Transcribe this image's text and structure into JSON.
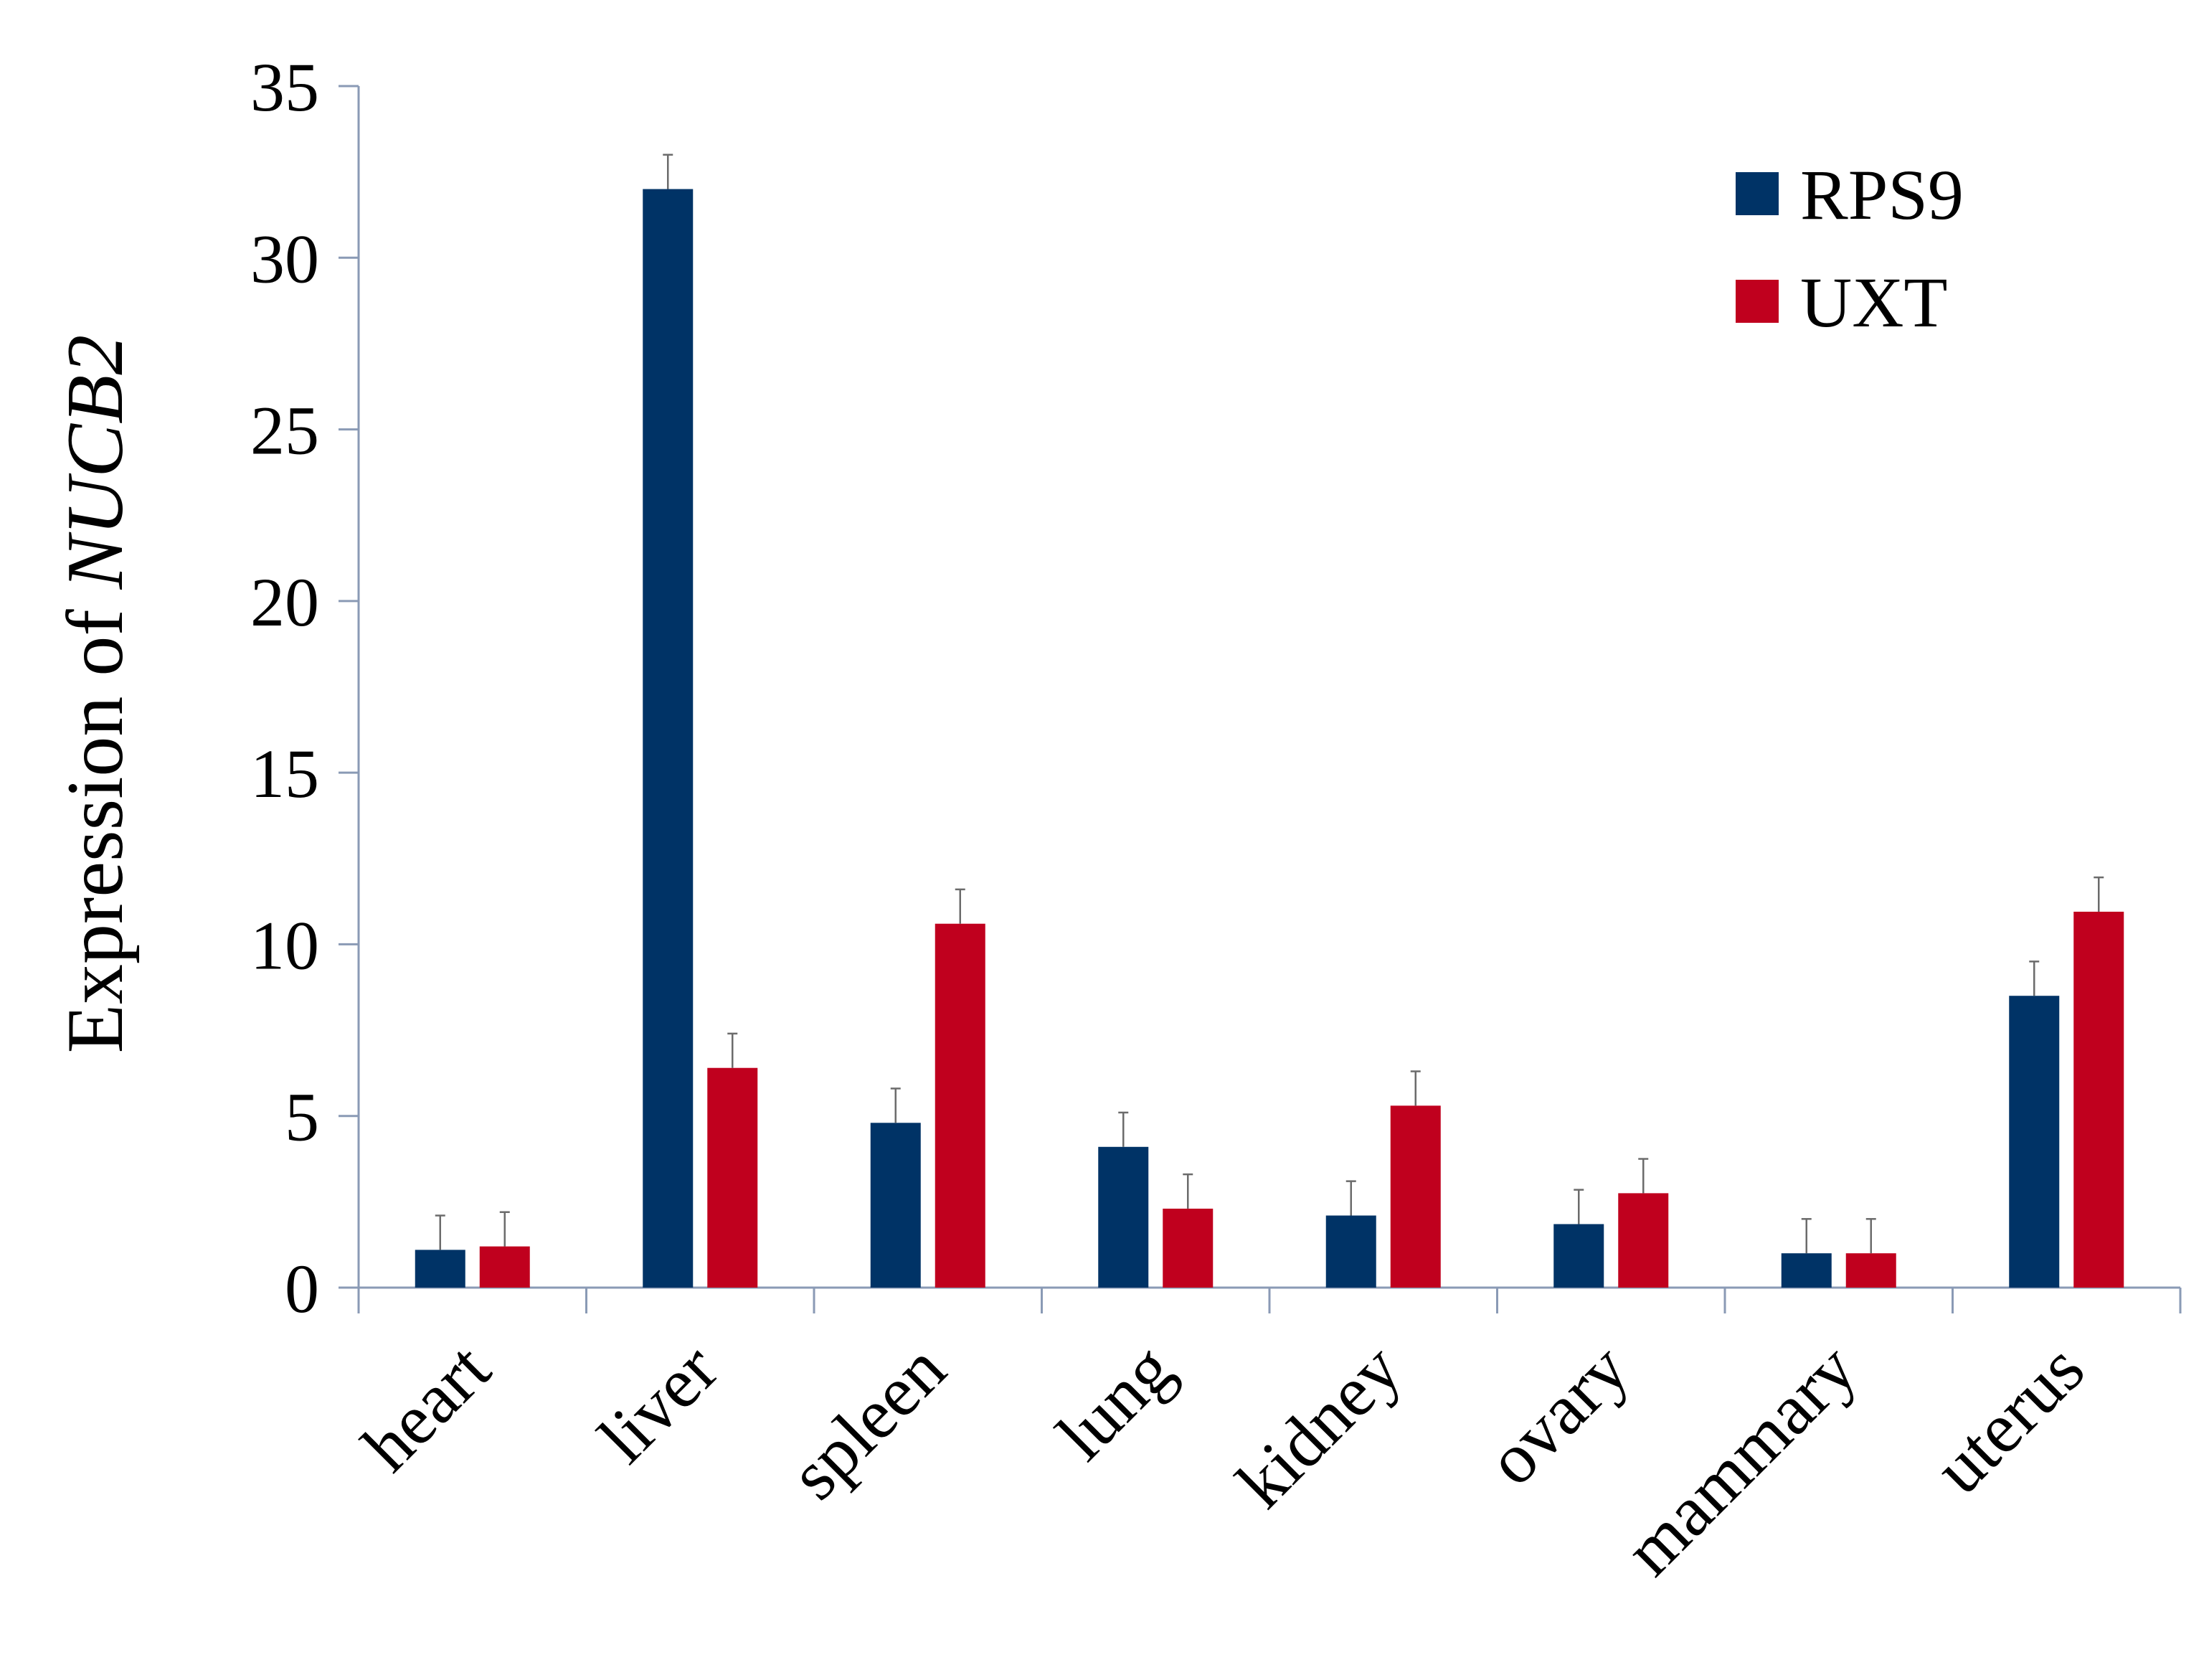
{
  "chart_data": {
    "type": "bar",
    "title": "",
    "xlabel": "",
    "ylabel": "Expression of ",
    "ylabel_italic": "NUCB2",
    "categories": [
      "heart",
      "liver",
      "spleen",
      "lung",
      "kidney",
      "ovary",
      "mammary",
      "uterus"
    ],
    "series": [
      {
        "name": "RPS9",
        "color": "#003366",
        "values": [
          1.1,
          32.0,
          4.8,
          4.1,
          2.1,
          1.85,
          1.0,
          8.5
        ],
        "errors": [
          1.0,
          1.0,
          1.0,
          1.0,
          1.0,
          1.0,
          1.0,
          1.0
        ]
      },
      {
        "name": "UXT",
        "color": "#c0001e",
        "values": [
          1.2,
          6.4,
          10.6,
          2.3,
          5.3,
          2.75,
          1.0,
          10.95
        ],
        "errors": [
          1.0,
          1.0,
          1.0,
          1.0,
          1.0,
          1.0,
          1.0,
          1.0
        ]
      }
    ],
    "ylim": [
      0,
      35
    ],
    "yticks": [
      "0",
      "5",
      "10",
      "15",
      "20",
      "25",
      "30",
      "35"
    ],
    "grid": false,
    "legend_position": "top-right",
    "axis_color": "#8a9ab5"
  }
}
